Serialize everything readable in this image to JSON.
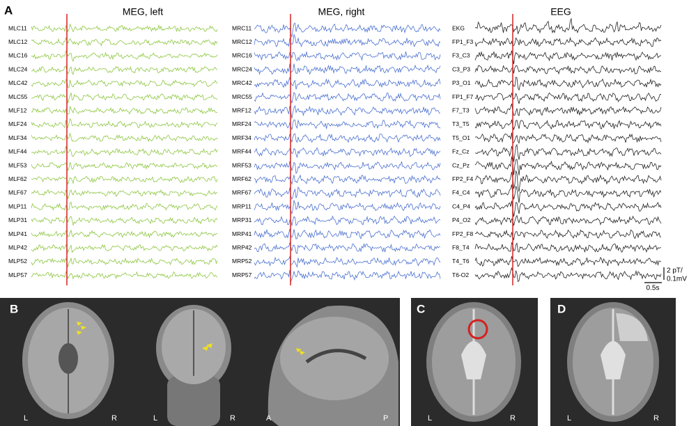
{
  "panel_a": {
    "label": "A",
    "groups": [
      {
        "title": "MEG, left",
        "channels": [
          "MLC11",
          "MLC12",
          "MLC16",
          "MLC24",
          "MLC42",
          "MLC55",
          "MLF12",
          "MLF24",
          "MLF34",
          "MLF44",
          "MLF53",
          "MLF62",
          "MLF67",
          "MLP11",
          "MLP31",
          "MLP41",
          "MLP42",
          "MLP52",
          "MLP57"
        ]
      },
      {
        "title": "MEG, right",
        "channels": [
          "MRC11",
          "MRC12",
          "MRC16",
          "MRC24",
          "MRC42",
          "MRC55",
          "MRF12",
          "MRF24",
          "MRF34",
          "MRF44",
          "MRF53",
          "MRF62",
          "MRF67",
          "MRP11",
          "MRP31",
          "MRP41",
          "MRP42",
          "MRP52",
          "MRP57"
        ]
      },
      {
        "title": "EEG",
        "channels": [
          "EKG",
          "FP1_F3",
          "F3_C3",
          "C3_P3",
          "P3_O1",
          "FP1_F7",
          "F7_T3",
          "T3_T5",
          "T5_O1",
          "Fz_Cz",
          "Cz_Pz",
          "FP2_F4",
          "F4_C4",
          "C4_P4",
          "P4_O2",
          "FP2_F8",
          "F8_T4",
          "T4_T6",
          "T6-O2"
        ]
      }
    ],
    "scale": {
      "amplitude": [
        "2 pT/",
        "0.1mV"
      ],
      "time": "0.5s"
    }
  },
  "panel_b": {
    "label": "B",
    "views": [
      [
        "L",
        "R"
      ],
      [
        "L",
        "R"
      ],
      [
        "A",
        "P"
      ]
    ]
  },
  "panel_c": {
    "label": "C",
    "orientation": [
      "L",
      "R"
    ]
  },
  "panel_d": {
    "label": "D",
    "orientation": [
      "L",
      "R"
    ]
  }
}
